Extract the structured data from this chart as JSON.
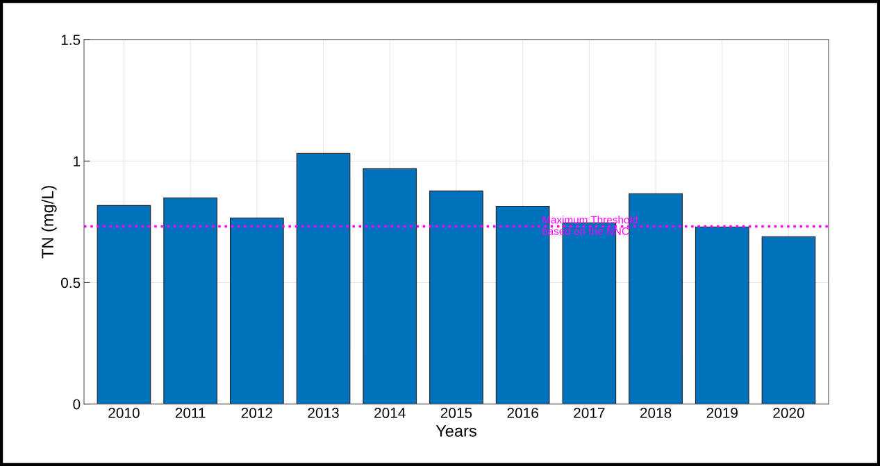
{
  "chart_data": {
    "type": "bar",
    "xlabel": "Years",
    "ylabel": "TN (mg/L)",
    "categories": [
      "2010",
      "2011",
      "2012",
      "2013",
      "2014",
      "2015",
      "2016",
      "2017",
      "2018",
      "2019",
      "2020"
    ],
    "series": [
      {
        "color": "#0072bd",
        "values": [
          0.817,
          0.849,
          0.766,
          1.031,
          0.969,
          0.877,
          0.814,
          0.746,
          0.866,
          0.729,
          0.689
        ]
      }
    ],
    "ylim": [
      0,
      1.5
    ],
    "yticks": [
      0,
      0.5,
      1,
      1.5
    ],
    "grid": true,
    "ref_lines": [
      {
        "axis": "y",
        "value": 0.731,
        "label": "Maximum Threshold\nbased on the NNC",
        "color": "#ff00ff",
        "line_style": "dotted"
      }
    ]
  }
}
